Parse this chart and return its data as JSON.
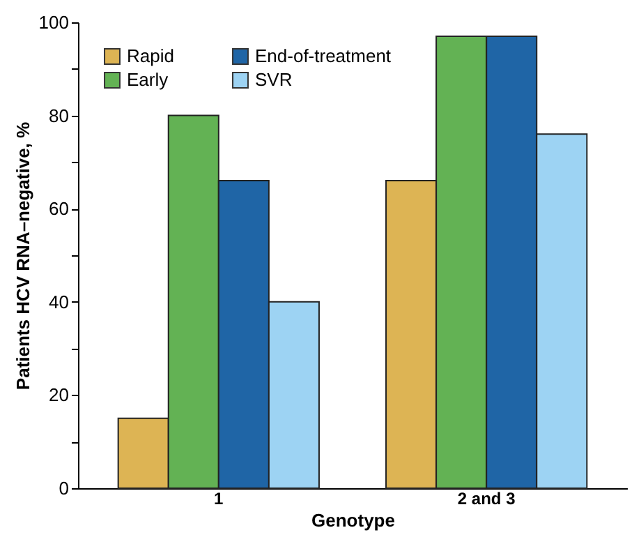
{
  "chart_data": {
    "type": "bar",
    "categories": [
      "1",
      "2 and 3"
    ],
    "series": [
      {
        "name": "Rapid",
        "color": "#ddb454",
        "values": [
          15,
          66
        ]
      },
      {
        "name": "Early",
        "color": "#63b254",
        "values": [
          80,
          97
        ]
      },
      {
        "name": "End-of-treatment",
        "color": "#1f65a6",
        "values": [
          66,
          97
        ]
      },
      {
        "name": "SVR",
        "color": "#9dd3f3",
        "values": [
          40,
          76
        ]
      }
    ],
    "xlabel": "Genotype",
    "ylabel": "Patients HCV RNA–negative, %",
    "ylim": [
      0,
      100
    ],
    "yticks": [
      0,
      {
        "value": 10,
        "label": null
      },
      20,
      {
        "value": 30,
        "label": null
      },
      40,
      {
        "value": 50,
        "label": null
      },
      60,
      {
        "value": 70,
        "label": null
      },
      80,
      {
        "value": 90,
        "label": null
      },
      100
    ],
    "grid": false,
    "legend": "top left"
  }
}
